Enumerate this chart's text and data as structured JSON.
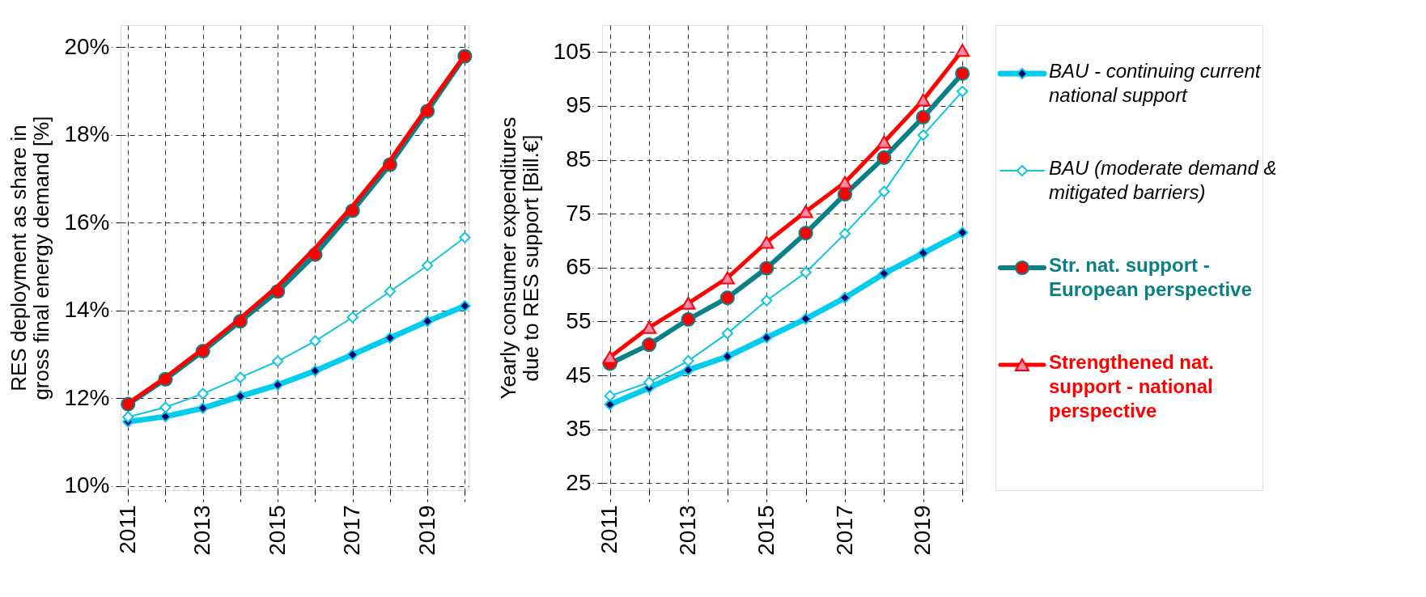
{
  "chart_data": [
    {
      "type": "line",
      "ylabel": "RES deployment as share in gross final energy demand [%]",
      "x": [
        2011,
        2012,
        2013,
        2014,
        2015,
        2016,
        2017,
        2018,
        2019,
        2020
      ],
      "xlim": [
        2010.8,
        2020.1
      ],
      "xticks": [
        2011,
        {
          "value": 2012,
          "label": null
        },
        2013,
        {
          "value": 2014,
          "label": null
        },
        2015,
        {
          "value": 2016,
          "label": null
        },
        2017,
        {
          "value": 2018,
          "label": null
        },
        2019,
        {
          "value": 2020,
          "label": null
        }
      ],
      "ylim": [
        9.9,
        20.5
      ],
      "yticks": [
        {
          "value": 10,
          "label": "10%"
        },
        {
          "value": 12,
          "label": "12%"
        },
        {
          "value": 14,
          "label": "14%"
        },
        {
          "value": 16,
          "label": "16%"
        },
        {
          "value": 18,
          "label": "18%"
        },
        {
          "value": 20,
          "label": "20%"
        }
      ],
      "grid": true,
      "series": [
        {
          "color": "#00ccee",
          "marker": "diamond",
          "values": [
            11.46,
            11.58,
            11.77,
            12.04,
            12.3,
            12.62,
            12.99,
            13.37,
            13.75,
            14.1
          ]
        },
        {
          "color": "#11c4e0",
          "marker": "diamond",
          "values": [
            11.57,
            11.79,
            12.1,
            12.47,
            12.84,
            13.3,
            13.84,
            14.43,
            15.02,
            15.66
          ]
        },
        {
          "color": "#0b7f86",
          "marker": "circle",
          "values": [
            11.86,
            12.43,
            13.07,
            13.75,
            14.43,
            15.27,
            16.27,
            17.32,
            18.54,
            19.79
          ]
        },
        {
          "color": "#ff0000",
          "marker": "none",
          "values": [
            11.88,
            12.47,
            13.12,
            13.82,
            14.55,
            15.42,
            16.38,
            17.42,
            18.63,
            19.82
          ]
        }
      ]
    },
    {
      "type": "line",
      "ylabel": "Yearly consumer expenditures due to RES support  [Bill.€]",
      "x": [
        2011,
        2012,
        2013,
        2014,
        2015,
        2016,
        2017,
        2018,
        2019,
        2020
      ],
      "xlim": [
        2010.8,
        2020.1
      ],
      "xticks": [
        2011,
        {
          "value": 2012,
          "label": null
        },
        2013,
        {
          "value": 2014,
          "label": null
        },
        2015,
        {
          "value": 2016,
          "label": null
        },
        2017,
        {
          "value": 2018,
          "label": null
        },
        2019,
        {
          "value": 2020,
          "label": null
        }
      ],
      "ylim": [
        23.7,
        110
      ],
      "yticks": [
        25,
        35,
        45,
        55,
        65,
        75,
        85,
        95,
        105
      ],
      "grid": true,
      "legend": "right",
      "series": [
        {
          "name": "BAU - continuing current national support",
          "color": "#00ccee",
          "marker": "diamond",
          "values": [
            39.6,
            42.7,
            46.0,
            48.5,
            52.0,
            55.5,
            59.4,
            63.9,
            67.7,
            71.5
          ]
        },
        {
          "name": "BAU (moderate demand & mitigated barriers)",
          "color": "#11c4e0",
          "marker": "diamond",
          "values": [
            41.2,
            43.7,
            47.7,
            52.8,
            58.9,
            64.1,
            71.3,
            79.1,
            89.6,
            97.7
          ]
        },
        {
          "name": "Str. nat. support - European perspective",
          "color": "#0b7f86",
          "marker": "circle",
          "values": [
            47.2,
            50.7,
            55.4,
            59.4,
            64.9,
            71.4,
            78.6,
            85.4,
            92.9,
            101.0
          ]
        },
        {
          "name": "Strengthened nat. support - national perspective",
          "color": "#ff0000",
          "marker": "triangle",
          "values": [
            48.4,
            53.9,
            58.4,
            63.1,
            69.7,
            75.4,
            80.8,
            88.3,
            96.1,
            105.3
          ]
        }
      ]
    }
  ]
}
